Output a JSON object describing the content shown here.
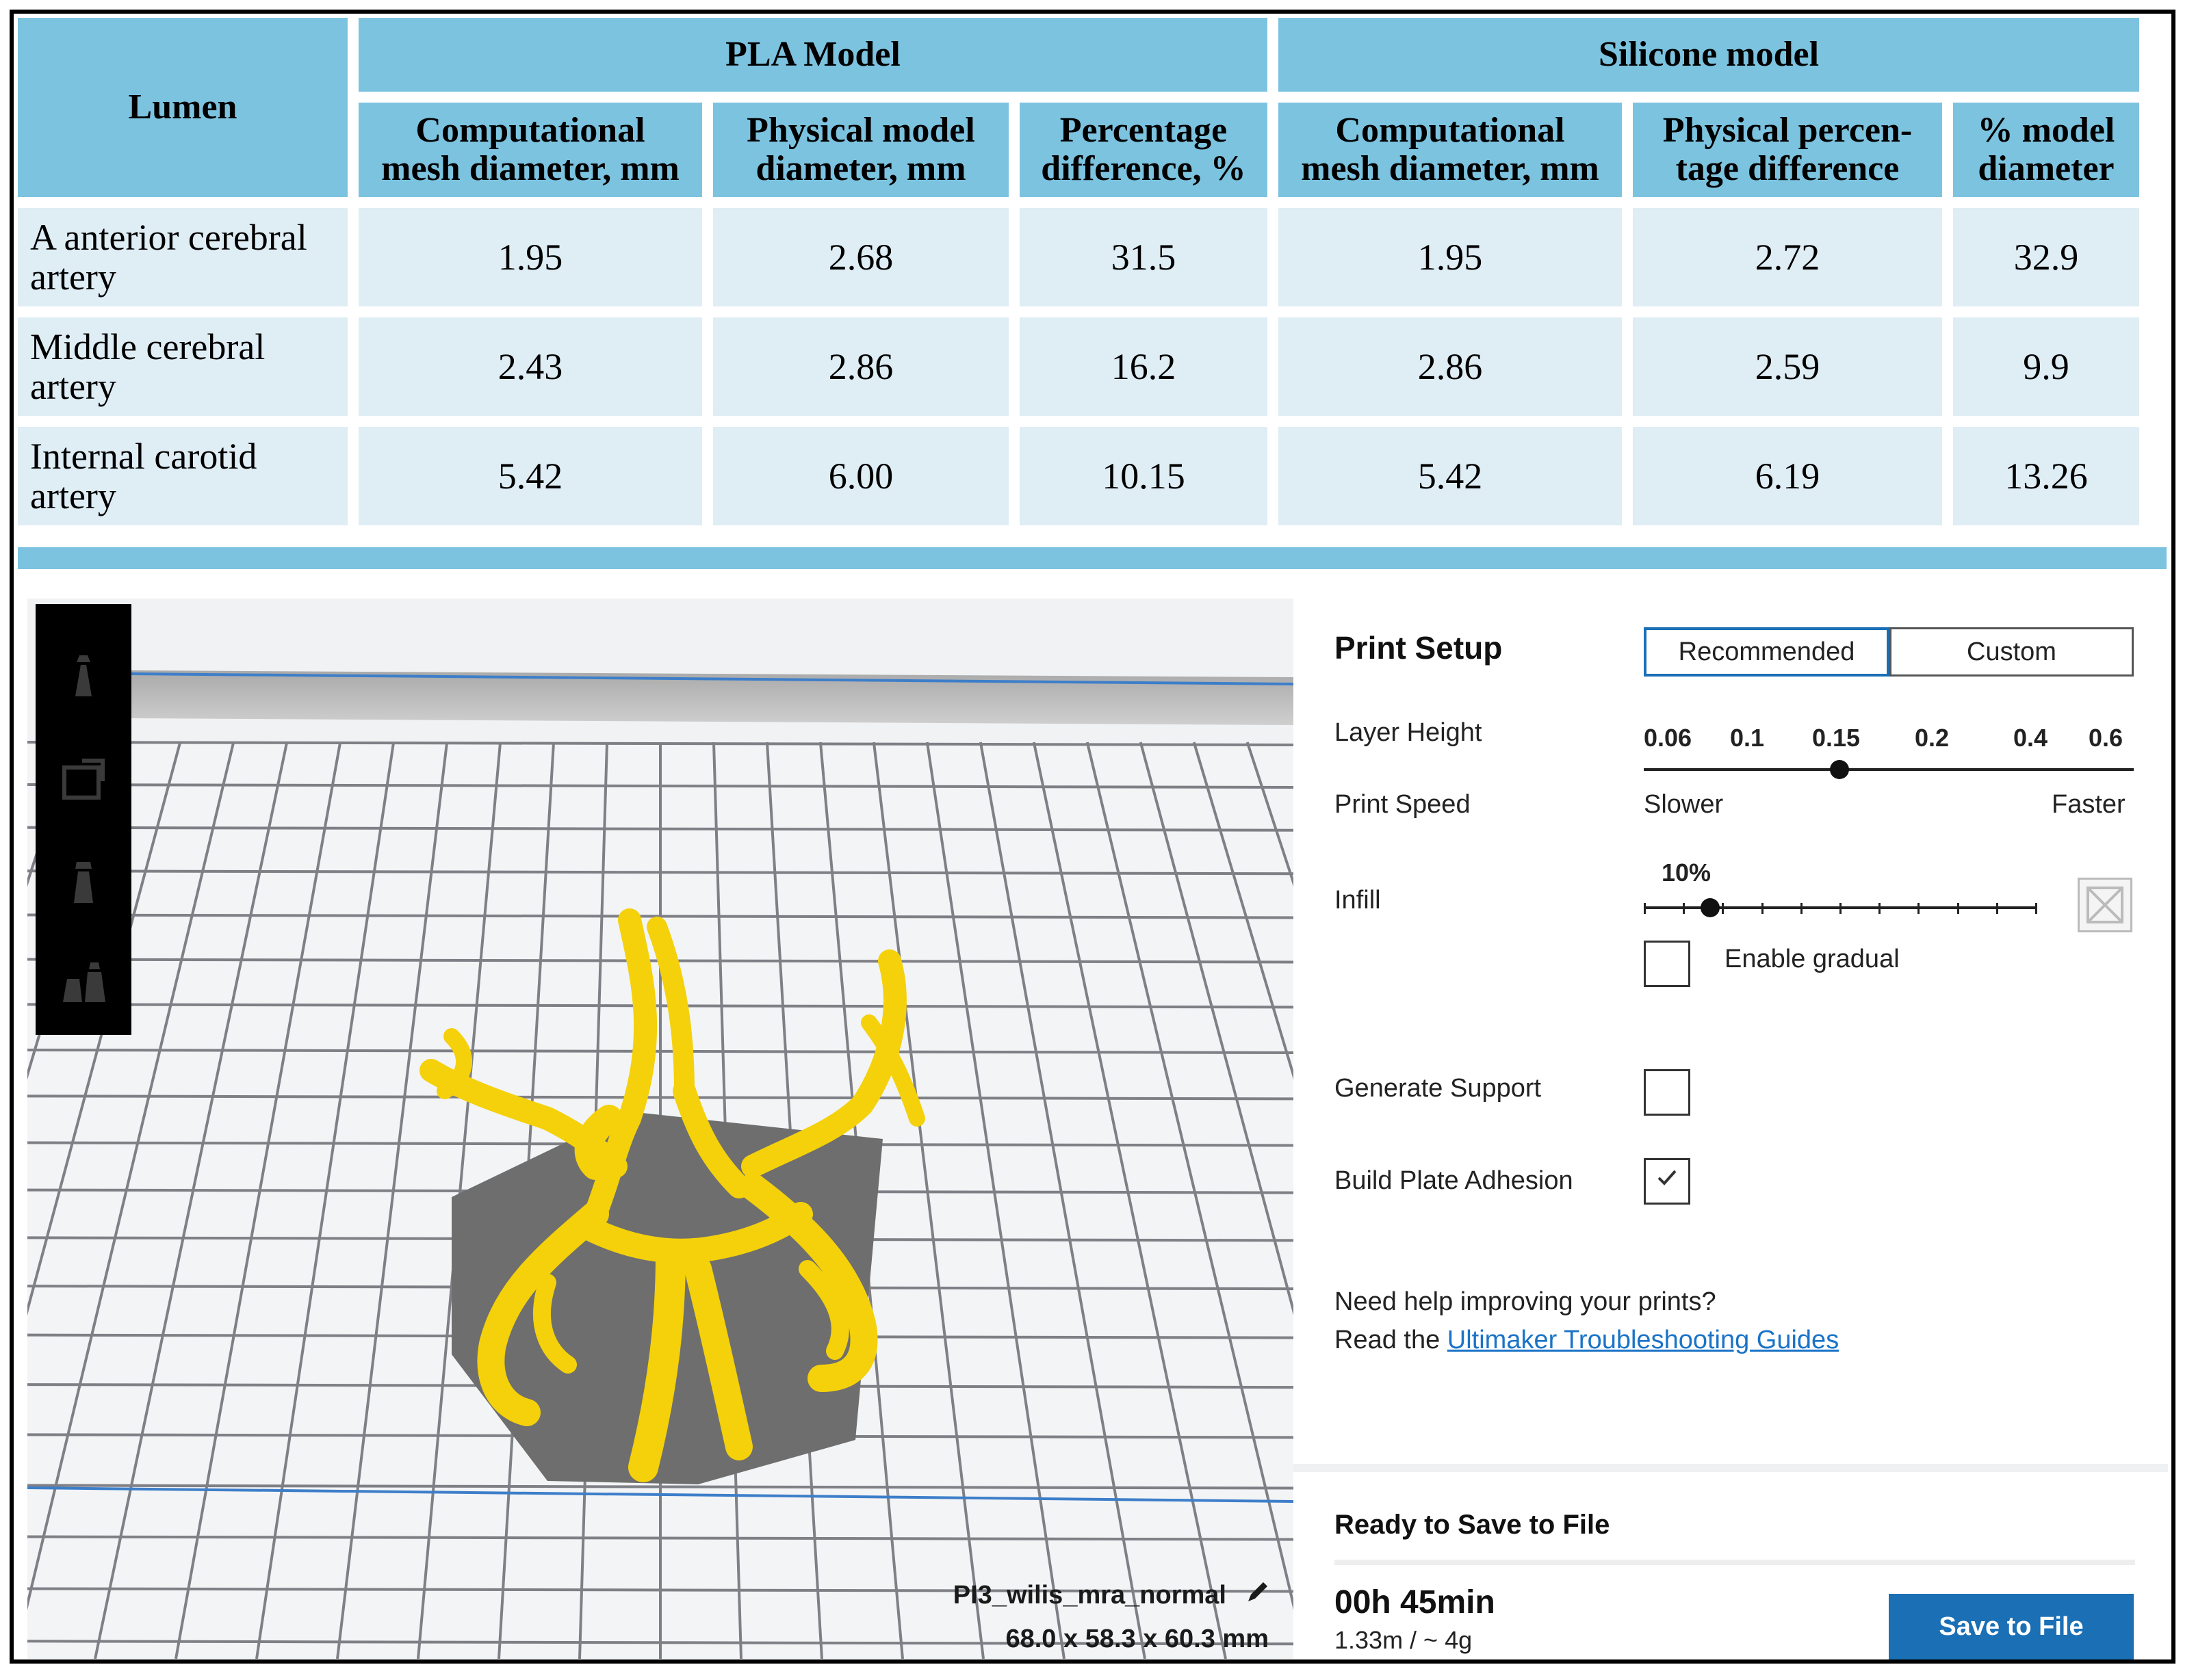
{
  "table": {
    "lumen_header": "Lumen",
    "groups": [
      "PLA Model",
      "Silicone model"
    ],
    "columns": [
      [
        "Computational",
        "mesh diameter, mm"
      ],
      [
        "Physical model",
        "diameter, mm"
      ],
      [
        "Percentage",
        "difference, %"
      ],
      [
        "Computational",
        "mesh diameter, mm"
      ],
      [
        "Physical percen-",
        "tage difference"
      ],
      [
        "% model",
        "diameter"
      ]
    ],
    "rows": [
      {
        "name": [
          "A anterior cerebral",
          "artery"
        ],
        "values": [
          "1.95",
          "2.68",
          "31.5",
          "1.95",
          "2.72",
          "32.9"
        ]
      },
      {
        "name": [
          "Middle cerebral",
          "artery"
        ],
        "values": [
          "2.43",
          "2.86",
          "16.2",
          "2.86",
          "2.59",
          "9.9"
        ]
      },
      {
        "name": [
          "Internal carotid",
          "artery"
        ],
        "values": [
          "5.42",
          "6.00",
          "10.15",
          "5.42",
          "6.19",
          "13.26"
        ]
      }
    ]
  },
  "viewport": {
    "model_name": "PI3_wilis_mra_normal",
    "dimensions": "68.0 x 58.3 x 60.3 mm",
    "model_color": "#f4d10a",
    "shadow_color": "#6e6e6e"
  },
  "print_setup": {
    "title": "Print Setup",
    "mode_recommended": "Recommended",
    "mode_custom": "Custom",
    "layer_height_label": "Layer Height",
    "layer_height_ticks": [
      "0.06",
      "0.1",
      "0.15",
      "0.2",
      "0.4",
      "0.6"
    ],
    "layer_height_selected": "0.15",
    "print_speed_label": "Print Speed",
    "speed_slow": "Slower",
    "speed_fast": "Faster",
    "infill_label": "Infill",
    "infill_value": "10%",
    "infill_fraction": 0.1,
    "enable_gradual_label": "Enable gradual",
    "enable_gradual_checked": false,
    "generate_support_label": "Generate Support",
    "generate_support_checked": false,
    "build_plate_label": "Build Plate Adhesion",
    "build_plate_checked": true,
    "help_line1": "Need help improving your prints?",
    "help_line2_prefix": "Read the",
    "help_link": "Ultimaker Troubleshooting Guides",
    "ready_label": "Ready to Save to File",
    "print_time": "00h 45min",
    "material": "1.33m / ~ 4g",
    "save_button": "Save to File",
    "accent_color": "#1a6fb5"
  }
}
